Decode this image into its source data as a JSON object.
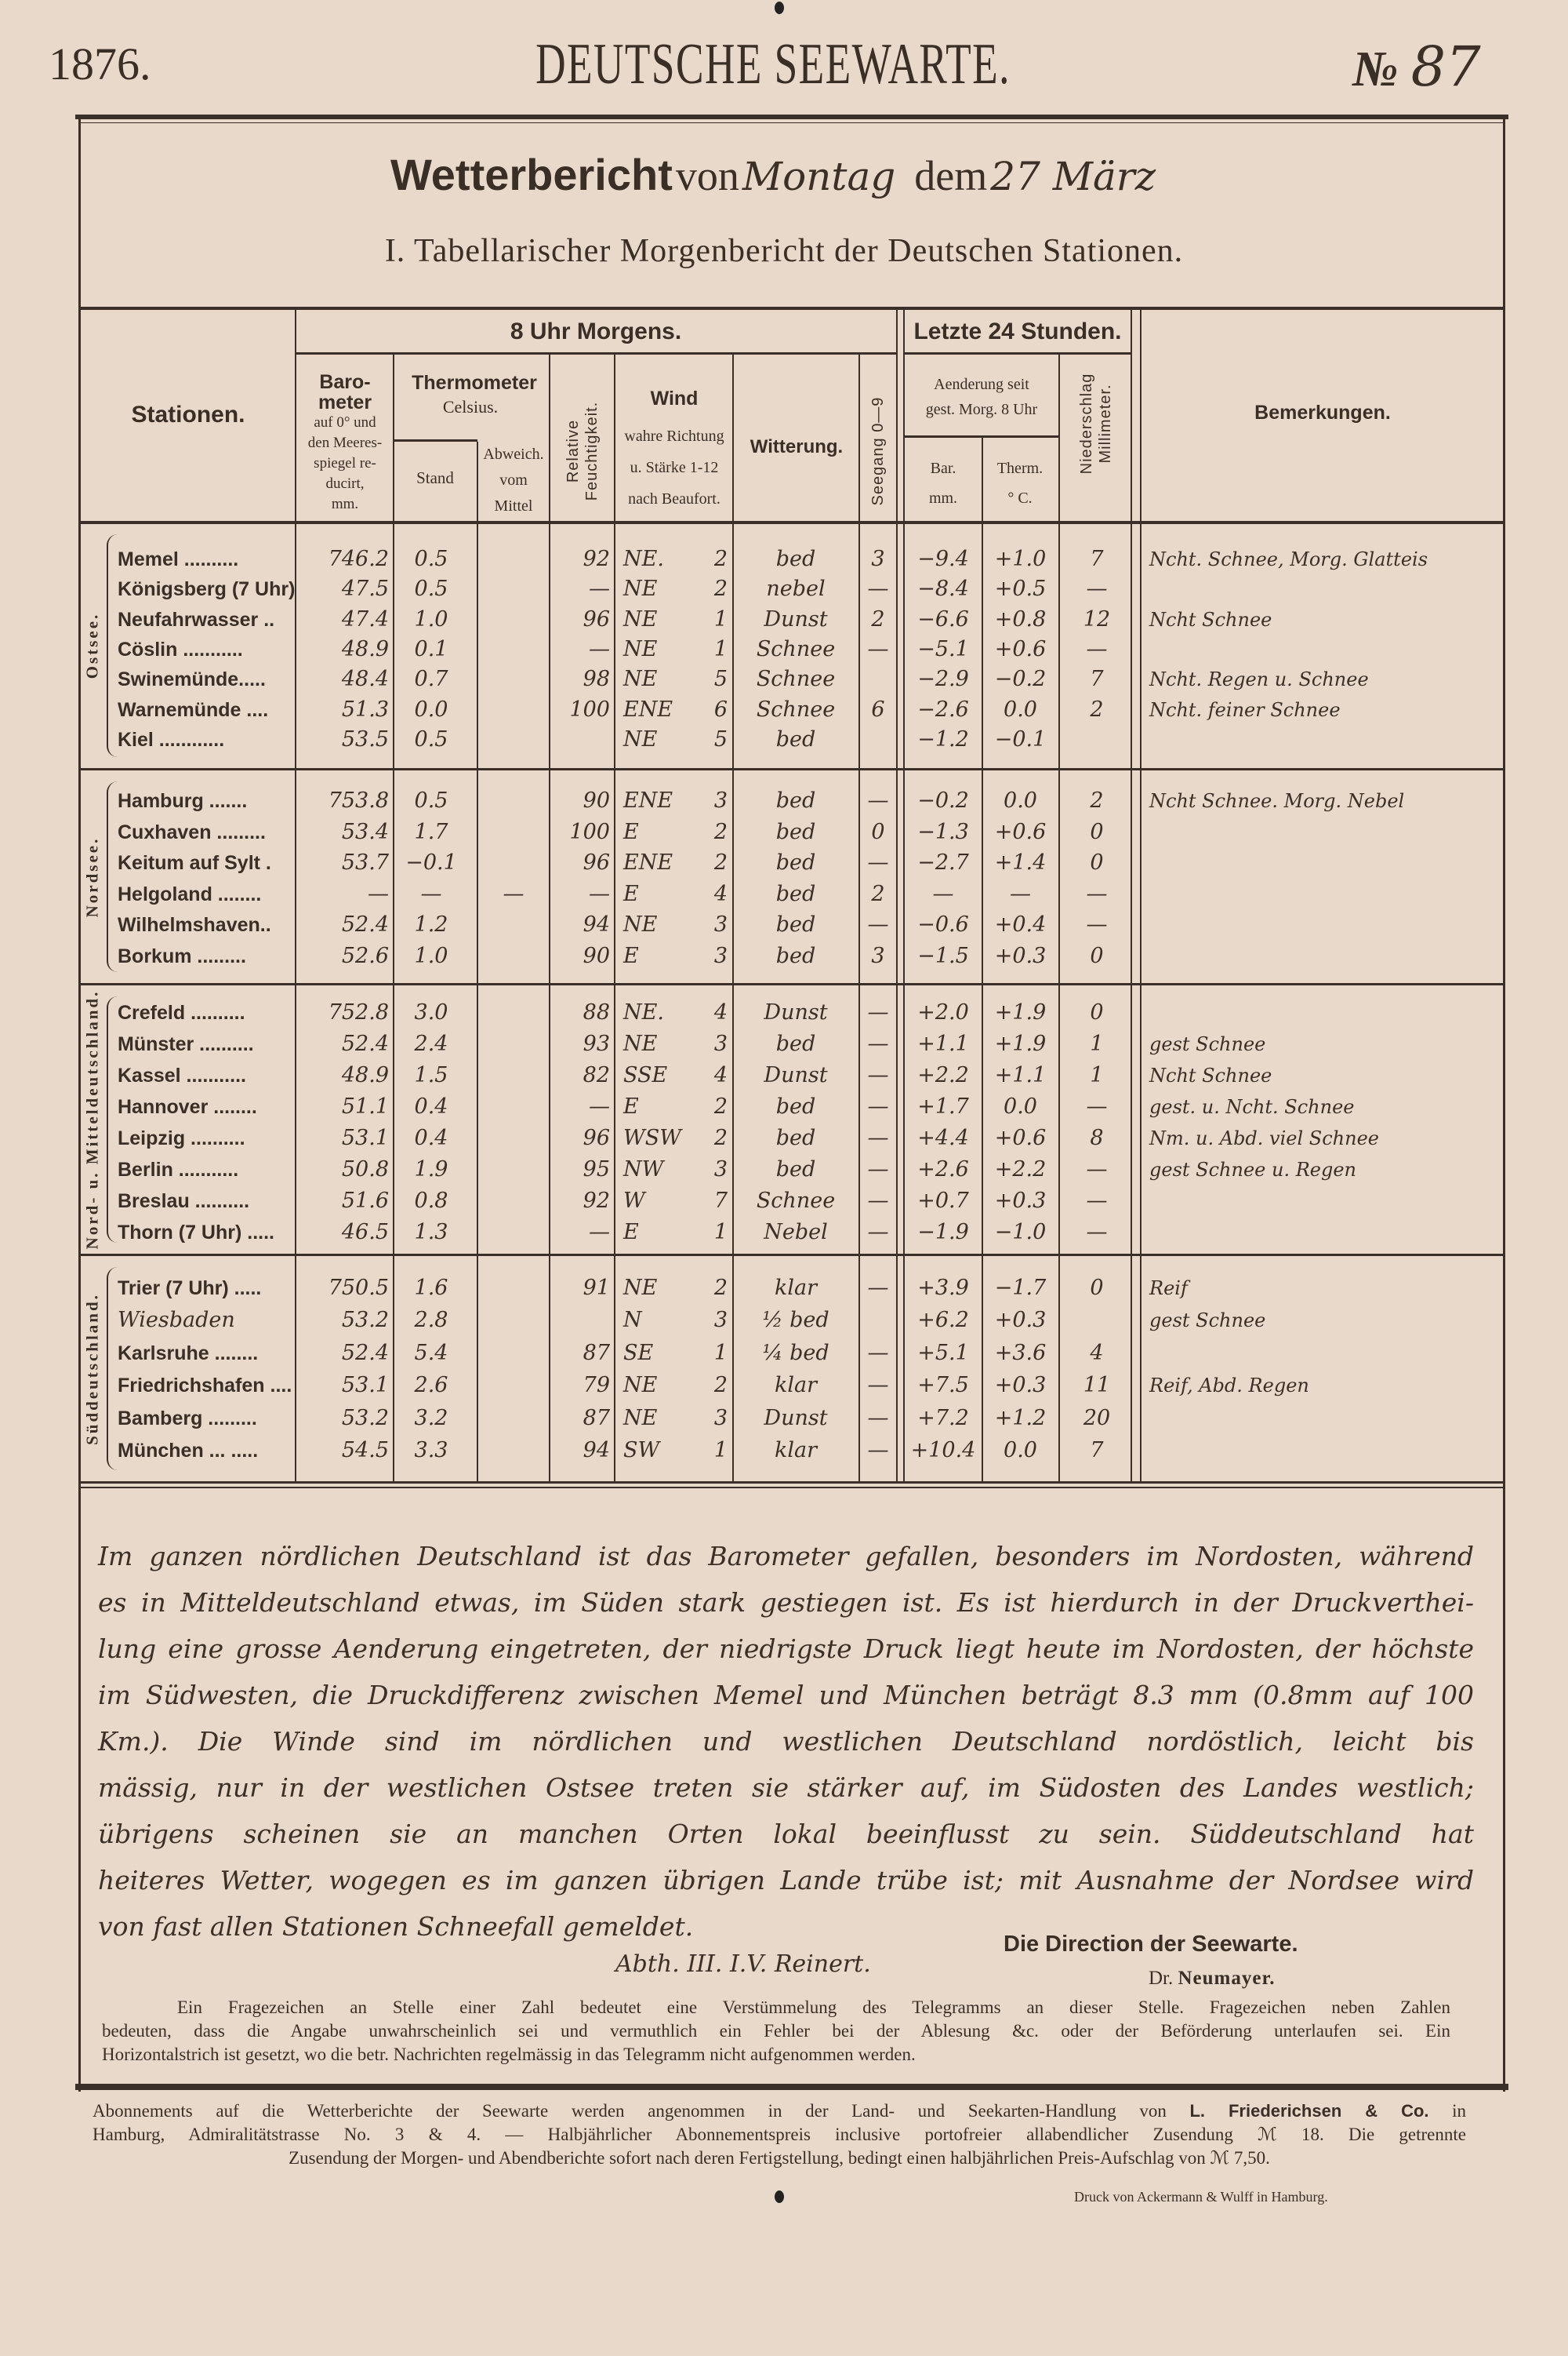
{
  "masthead": {
    "year": "1876.",
    "title": "DEUTSCHE SEEWARTE.",
    "number_sign": "№",
    "number": "87"
  },
  "report_title": {
    "prefix": "Wetterbericht",
    "von": "von",
    "weekday": "Montag",
    "dem": "dem",
    "date": "27 März"
  },
  "subtitle": "I. Tabellarischer Morgenbericht der Deutschen Stationen.",
  "table": {
    "header": {
      "stationen": "Stationen.",
      "morning": "8 Uhr Morgens.",
      "last24": "Letzte 24 Stunden.",
      "baro": [
        "Baro-",
        "meter"
      ],
      "baro_sub": [
        "auf 0° und",
        "den Meeres-",
        "spiegel re-",
        "ducirt,",
        "mm."
      ],
      "thermo": "Thermometer",
      "thermo_sub": "Celsius.",
      "stand": "Stand",
      "abweich": [
        "Abweich.",
        "vom",
        "Mittel"
      ],
      "humidity": [
        "Relative",
        "Feuchtigkeit."
      ],
      "wind": "Wind",
      "wind_sub": [
        "wahre Richtung",
        "u. Stärke 1-12",
        "nach Beaufort."
      ],
      "witterung": "Witterung.",
      "seegang": "Seegang 0—9",
      "aenderung": [
        "Aenderung seit",
        "gest. Morg. 8 Uhr"
      ],
      "bar": [
        "Bar.",
        "mm."
      ],
      "therm": [
        "Therm.",
        "° C."
      ],
      "niederschlag": [
        "Niederschlag",
        "Millimeter."
      ],
      "bemerkungen": "Bemerkungen."
    },
    "sections": [
      {
        "name": "Ostsee.",
        "rows": [
          {
            "station": "Memel ..........",
            "baro": "746.2",
            "stand": "0.5",
            "abw": "",
            "hum": "92",
            "wdir": "NE.",
            "wforce": "2",
            "weather": "bed",
            "sea": "3",
            "dbar": "−9.4",
            "dtherm": "+1.0",
            "precip": "7",
            "remark": "Ncht. Schnee, Morg. Glatteis"
          },
          {
            "station": "Königsberg (7 Uhr) .",
            "baro": "47.5",
            "stand": "0.5",
            "abw": "",
            "hum": "—",
            "wdir": "NE",
            "wforce": "2",
            "weather": "nebel",
            "sea": "—",
            "dbar": "−8.4",
            "dtherm": "+0.5",
            "precip": "—",
            "remark": ""
          },
          {
            "station": "Neufahrwasser ..",
            "baro": "47.4",
            "stand": "1.0",
            "abw": "",
            "hum": "96",
            "wdir": "NE",
            "wforce": "1",
            "weather": "Dunst",
            "sea": "2",
            "dbar": "−6.6",
            "dtherm": "+0.8",
            "precip": "12",
            "remark": "Ncht Schnee"
          },
          {
            "station": "Cöslin ...........",
            "baro": "48.9",
            "stand": "0.1",
            "abw": "",
            "hum": "—",
            "wdir": "NE",
            "wforce": "1",
            "weather": "Schnee",
            "sea": "—",
            "dbar": "−5.1",
            "dtherm": "+0.6",
            "precip": "—",
            "remark": ""
          },
          {
            "station": "Swinemünde.....",
            "baro": "48.4",
            "stand": "0.7",
            "abw": "",
            "hum": "98",
            "wdir": "NE",
            "wforce": "5",
            "weather": "Schnee",
            "sea": "",
            "dbar": "−2.9",
            "dtherm": "−0.2",
            "precip": "7",
            "remark": "Ncht. Regen u. Schnee"
          },
          {
            "station": "Warnemünde ....",
            "baro": "51.3",
            "stand": "0.0",
            "abw": "",
            "hum": "100",
            "wdir": "ENE",
            "wforce": "6",
            "weather": "Schnee",
            "sea": "6",
            "dbar": "−2.6",
            "dtherm": "0.0",
            "precip": "2",
            "remark": "Ncht. feiner Schnee"
          },
          {
            "station": "Kiel ............",
            "baro": "53.5",
            "stand": "0.5",
            "abw": "",
            "hum": "",
            "wdir": "NE",
            "wforce": "5",
            "weather": "bed",
            "sea": "",
            "dbar": "−1.2",
            "dtherm": "−0.1",
            "precip": "",
            "remark": ""
          }
        ]
      },
      {
        "name": "Nordsee.",
        "rows": [
          {
            "station": "Hamburg .......",
            "baro": "753.8",
            "stand": "0.5",
            "abw": "",
            "hum": "90",
            "wdir": "ENE",
            "wforce": "3",
            "weather": "bed",
            "sea": "—",
            "dbar": "−0.2",
            "dtherm": "0.0",
            "precip": "2",
            "remark": "Ncht Schnee. Morg. Nebel"
          },
          {
            "station": "Cuxhaven .........",
            "baro": "53.4",
            "stand": "1.7",
            "abw": "",
            "hum": "100",
            "wdir": "E",
            "wforce": "2",
            "weather": "bed",
            "sea": "0",
            "dbar": "−1.3",
            "dtherm": "+0.6",
            "precip": "0",
            "remark": ""
          },
          {
            "station": "Keitum auf Sylt .",
            "baro": "53.7",
            "stand": "−0.1",
            "abw": "",
            "hum": "96",
            "wdir": "ENE",
            "wforce": "2",
            "weather": "bed",
            "sea": "—",
            "dbar": "−2.7",
            "dtherm": "+1.4",
            "precip": "0",
            "remark": ""
          },
          {
            "station": "Helgoland ........",
            "baro": "—",
            "stand": "—",
            "abw": "—",
            "hum": "—",
            "wdir": "E",
            "wforce": "4",
            "weather": "bed",
            "sea": "2",
            "dbar": "—",
            "dtherm": "—",
            "precip": "—",
            "remark": ""
          },
          {
            "station": "Wilhelmshaven..",
            "baro": "52.4",
            "stand": "1.2",
            "abw": "",
            "hum": "94",
            "wdir": "NE",
            "wforce": "3",
            "weather": "bed",
            "sea": "—",
            "dbar": "−0.6",
            "dtherm": "+0.4",
            "precip": "—",
            "remark": ""
          },
          {
            "station": "Borkum .........",
            "baro": "52.6",
            "stand": "1.0",
            "abw": "",
            "hum": "90",
            "wdir": "E",
            "wforce": "3",
            "weather": "bed",
            "sea": "3",
            "dbar": "−1.5",
            "dtherm": "+0.3",
            "precip": "0",
            "remark": ""
          }
        ]
      },
      {
        "name": "Nord- u. Mitteldeutschland.",
        "rows": [
          {
            "station": "Crefeld ..........",
            "baro": "752.8",
            "stand": "3.0",
            "abw": "",
            "hum": "88",
            "wdir": "NE.",
            "wforce": "4",
            "weather": "Dunst",
            "sea": "—",
            "dbar": "+2.0",
            "dtherm": "+1.9",
            "precip": "0",
            "remark": ""
          },
          {
            "station": "Münster ..........",
            "baro": "52.4",
            "stand": "2.4",
            "abw": "",
            "hum": "93",
            "wdir": "NE",
            "wforce": "3",
            "weather": "bed",
            "sea": "—",
            "dbar": "+1.1",
            "dtherm": "+1.9",
            "precip": "1",
            "remark": "gest Schnee"
          },
          {
            "station": "Kassel ...........",
            "baro": "48.9",
            "stand": "1.5",
            "abw": "",
            "hum": "82",
            "wdir": "SSE",
            "wforce": "4",
            "weather": "Dunst",
            "sea": "—",
            "dbar": "+2.2",
            "dtherm": "+1.1",
            "precip": "1",
            "remark": "Ncht Schnee"
          },
          {
            "station": "Hannover ........",
            "baro": "51.1",
            "stand": "0.4",
            "abw": "",
            "hum": "—",
            "wdir": "E",
            "wforce": "2",
            "weather": "bed",
            "sea": "—",
            "dbar": "+1.7",
            "dtherm": "0.0",
            "precip": "—",
            "remark": "gest. u. Ncht. Schnee"
          },
          {
            "station": "Leipzig ..........",
            "baro": "53.1",
            "stand": "0.4",
            "abw": "",
            "hum": "96",
            "wdir": "WSW",
            "wforce": "2",
            "weather": "bed",
            "sea": "—",
            "dbar": "+4.4",
            "dtherm": "+0.6",
            "precip": "8",
            "remark": "Nm. u. Abd. viel Schnee"
          },
          {
            "station": "Berlin ...........",
            "baro": "50.8",
            "stand": "1.9",
            "abw": "",
            "hum": "95",
            "wdir": "NW",
            "wforce": "3",
            "weather": "bed",
            "sea": "—",
            "dbar": "+2.6",
            "dtherm": "+2.2",
            "precip": "—",
            "remark": "gest Schnee u. Regen"
          },
          {
            "station": "Breslau ..........",
            "baro": "51.6",
            "stand": "0.8",
            "abw": "",
            "hum": "92",
            "wdir": "W",
            "wforce": "7",
            "weather": "Schnee",
            "sea": "—",
            "dbar": "+0.7",
            "dtherm": "+0.3",
            "precip": "—",
            "remark": ""
          },
          {
            "station": "Thorn (7 Uhr) .....",
            "baro": "46.5",
            "stand": "1.3",
            "abw": "",
            "hum": "—",
            "wdir": "E",
            "wforce": "1",
            "weather": "Nebel",
            "sea": "—",
            "dbar": "−1.9",
            "dtherm": "−1.0",
            "precip": "—",
            "remark": ""
          }
        ]
      },
      {
        "name": "Süddeutschland.",
        "rows": [
          {
            "station": "Trier (7 Uhr) .....",
            "baro": "750.5",
            "stand": "1.6",
            "abw": "",
            "hum": "91",
            "wdir": "NE",
            "wforce": "2",
            "weather": "klar",
            "sea": "—",
            "dbar": "+3.9",
            "dtherm": "−1.7",
            "precip": "0",
            "remark": "Reif"
          },
          {
            "station": "Wiesbaden",
            "baro": "53.2",
            "stand": "2.8",
            "abw": "",
            "hum": "",
            "wdir": "N",
            "wforce": "3",
            "weather": "½ bed",
            "sea": "",
            "dbar": "+6.2",
            "dtherm": "+0.3",
            "precip": "",
            "remark": "gest Schnee"
          },
          {
            "station": "Karlsruhe ........",
            "baro": "52.4",
            "stand": "5.4",
            "abw": "",
            "hum": "87",
            "wdir": "SE",
            "wforce": "1",
            "weather": "¼ bed",
            "sea": "—",
            "dbar": "+5.1",
            "dtherm": "+3.6",
            "precip": "4",
            "remark": ""
          },
          {
            "station": "Friedrichshafen ....",
            "baro": "53.1",
            "stand": "2.6",
            "abw": "",
            "hum": "79",
            "wdir": "NE",
            "wforce": "2",
            "weather": "klar",
            "sea": "—",
            "dbar": "+7.5",
            "dtherm": "+0.3",
            "precip": "11",
            "remark": "Reif, Abd. Regen"
          },
          {
            "station": "Bamberg .........",
            "baro": "53.2",
            "stand": "3.2",
            "abw": "",
            "hum": "87",
            "wdir": "NE",
            "wforce": "3",
            "weather": "Dunst",
            "sea": "—",
            "dbar": "+7.2",
            "dtherm": "+1.2",
            "precip": "20",
            "remark": ""
          },
          {
            "station": "München ... .....",
            "baro": "54.5",
            "stand": "3.3",
            "abw": "",
            "hum": "94",
            "wdir": "SW",
            "wforce": "1",
            "weather": "klar",
            "sea": "—",
            "dbar": "+10.4",
            "dtherm": "0.0",
            "precip": "7",
            "remark": ""
          }
        ]
      }
    ]
  },
  "summary_lines": [
    "Im ganzen nördlichen Deutschland ist das Barometer gefallen, besonders im Nordosten, während",
    "es in Mitteldeutschland etwas, im Süden stark gestiegen ist. Es ist hierdurch in der Druckverthei-",
    "lung eine grosse Aenderung eingetreten, der niedrigste Druck liegt heute im Nordosten, der höchste",
    "im Südwesten, die Druckdifferenz zwischen Memel und München beträgt 8.3 mm (0.8mm auf 100",
    "Km.). Die Winde sind im nördlichen und westlichen Deutschland nordöstlich, leicht bis",
    "mässig, nur in der westlichen Ostsee treten sie stärker auf, im Südosten des Landes westlich;",
    "übrigens scheinen sie an manchen Orten lokal beeinflusst zu sein. Süddeutschland hat",
    "heiteres Wetter, wogegen es im ganzen übrigen Lande trübe ist; mit Ausnahme der Nordsee wird",
    "von fast allen Stationen Schneefall gemeldet."
  ],
  "signature": {
    "handwritten": "Abth. III. I.V. Reinert.",
    "direction": "Die Direction der Seewarte.",
    "director_prefix": "Dr.",
    "director_name": "Neumayer."
  },
  "note_lines": [
    "Ein Fragezeichen an Stelle einer Zahl bedeutet eine Verstümmelung des Telegramms an dieser Stelle. Fragezeichen neben Zahlen",
    "bedeuten, dass die Angabe unwahrscheinlich sei und vermuthlich ein Fehler bei der Ablesung &c. oder der Beförderung unterlaufen sei. Ein",
    "Horizontalstrich ist gesetzt, wo die betr. Nachrichten regelmässig in das Telegramm nicht aufgenommen werden."
  ],
  "footer": {
    "line1_a": "Abonnements auf die Wetterberichte der Seewarte werden angenommen in der Land- und Seekarten-Handlung von",
    "line1_bold": "L. Friederichsen & Co.",
    "line1_b": "in",
    "line2": "Hamburg, Admiralitätstrasse No. 3 & 4. — Halbjährlicher Abonnementspreis inclusive portofreier allabendlicher Zusendung ℳ 18. Die getrennte",
    "line3": "Zusendung der Morgen- und Abendberichte sofort nach deren Fertigstellung, bedingt einen halbjährlichen Preis-Aufschlag von ℳ 7,50.",
    "printer": "Druck von Ackermann & Wulff in Hamburg."
  },
  "colors": {
    "paper": "#e9d9cb",
    "ink": "#3a2f27"
  }
}
